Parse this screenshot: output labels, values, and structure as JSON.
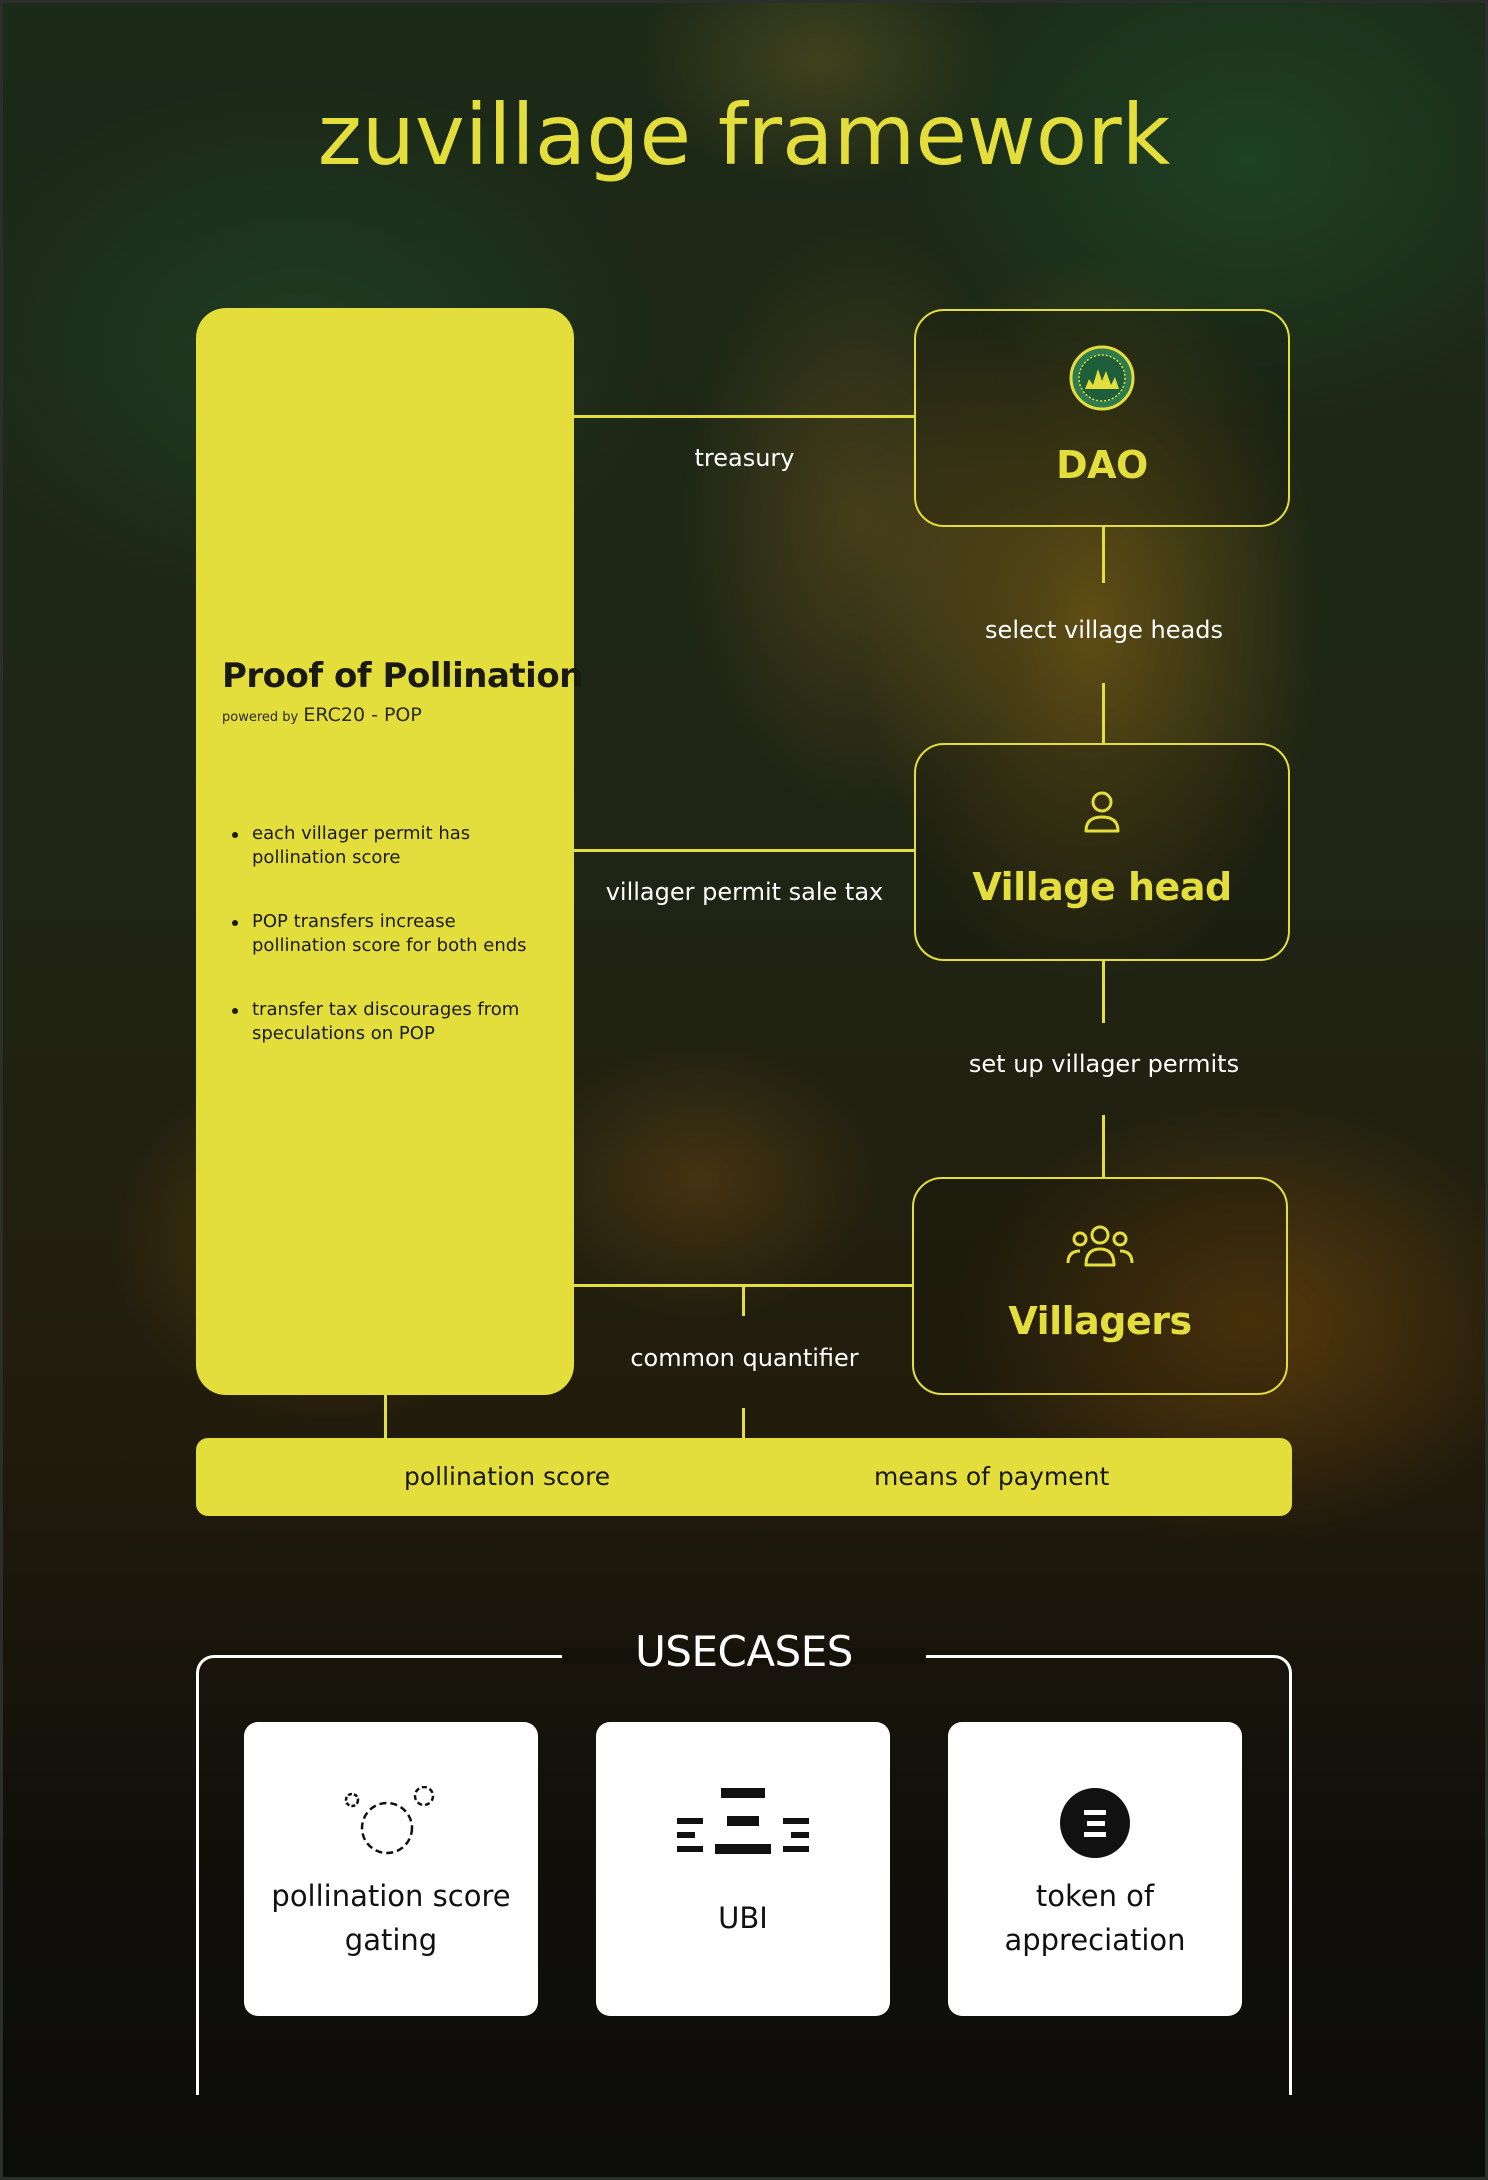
{
  "title": "zuvillage framework",
  "proof_of_pollination": {
    "title": "Proof of Pollination",
    "powered_by_prefix": "powered by",
    "powered_by_token": "ERC20 - POP",
    "bullets": [
      "each villager permit has pollination score",
      "POP transfers increase pollination score for both ends",
      "transfer tax discourages from speculations on POP"
    ]
  },
  "nodes": {
    "dao": {
      "label": "DAO",
      "icon": "zuvillage-logo-icon"
    },
    "village_head": {
      "label": "Village head",
      "icon": "person-icon"
    },
    "villagers": {
      "label": "Villagers",
      "icon": "group-icon"
    }
  },
  "edges": {
    "treasury": "treasury",
    "select_village_heads": "select village heads",
    "villager_permit_sale_tax": "villager permit sale tax",
    "set_up_villager_permits": "set up villager permits",
    "common_quantifier": "common quantifier"
  },
  "bottom_bar": {
    "left": "pollination score",
    "right": "means of payment"
  },
  "usecases": {
    "title": "USECASES",
    "cards": [
      {
        "label_line1": "pollination score",
        "label_line2": "gating",
        "icon": "bubbles-icon"
      },
      {
        "label": "UBI",
        "icon": "distribution-bars-icon"
      },
      {
        "label_line1": "token of",
        "label_line2": "appreciation",
        "icon": "token-circle-icon"
      }
    ]
  },
  "colors": {
    "accent_yellow": "#e3de3c",
    "text_dark": "#1a1a12",
    "white": "#ffffff"
  }
}
